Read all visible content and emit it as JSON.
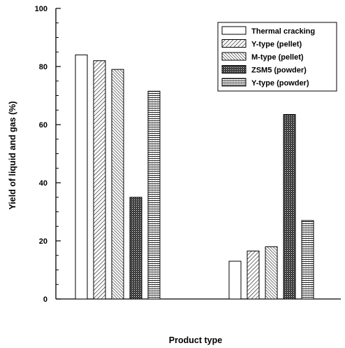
{
  "chart_data": {
    "type": "bar",
    "title": "",
    "xlabel": "Product type",
    "ylabel": "Yield of liquid and gas (%)",
    "ylim": [
      0,
      100
    ],
    "yticks": [
      "0",
      "20",
      "40",
      "60",
      "80",
      "100"
    ],
    "grid": false,
    "legend_position": "top-right",
    "groups": [
      {
        "name": "",
        "values": [
          84,
          82,
          79,
          35,
          71.5
        ]
      },
      {
        "name": "",
        "values": [
          13,
          16.5,
          18,
          63.5,
          27
        ]
      }
    ],
    "series": [
      {
        "name": "Thermal cracking",
        "pattern": "none"
      },
      {
        "name": "Y-type (pellet)",
        "pattern": "diagonal-right"
      },
      {
        "name": "M-type (pellet)",
        "pattern": "diagonal-dense"
      },
      {
        "name": "ZSM5 (powder)",
        "pattern": "crosshatch-dark"
      },
      {
        "name": "Y-type (powder)",
        "pattern": "horizontal-lines"
      }
    ]
  }
}
